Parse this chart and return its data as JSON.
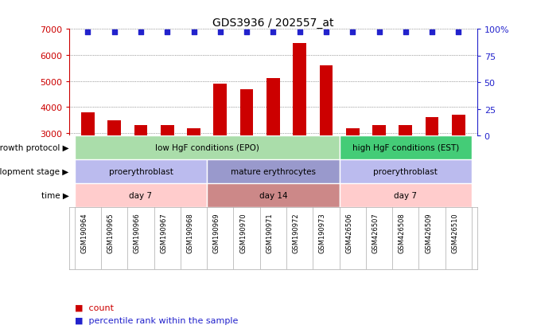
{
  "title": "GDS3936 / 202557_at",
  "samples": [
    "GSM190964",
    "GSM190965",
    "GSM190966",
    "GSM190967",
    "GSM190968",
    "GSM190969",
    "GSM190970",
    "GSM190971",
    "GSM190972",
    "GSM190973",
    "GSM426506",
    "GSM426507",
    "GSM426508",
    "GSM426509",
    "GSM426510"
  ],
  "counts": [
    3800,
    3500,
    3300,
    3300,
    3200,
    4900,
    4700,
    5100,
    6450,
    5600,
    3200,
    3300,
    3300,
    3600,
    3700
  ],
  "bar_color": "#cc0000",
  "dot_color": "#2222cc",
  "ylim_left": [
    2900,
    7000
  ],
  "ylim_right": [
    0,
    100
  ],
  "yticks_left": [
    3000,
    4000,
    5000,
    6000,
    7000
  ],
  "yticks_right": [
    0,
    25,
    50,
    75,
    100
  ],
  "grid_y": [
    3000,
    4000,
    5000,
    6000,
    7000
  ],
  "growth_protocol": {
    "segments": [
      {
        "label": "low HgF conditions (EPO)",
        "start": 0,
        "end": 9,
        "color": "#aaddaa"
      },
      {
        "label": "high HgF conditions (EST)",
        "start": 10,
        "end": 14,
        "color": "#44cc77"
      }
    ]
  },
  "development_stage": {
    "segments": [
      {
        "label": "proerythroblast",
        "start": 0,
        "end": 4,
        "color": "#bbbbee"
      },
      {
        "label": "mature erythrocytes",
        "start": 5,
        "end": 9,
        "color": "#9999cc"
      },
      {
        "label": "proerythroblast",
        "start": 10,
        "end": 14,
        "color": "#bbbbee"
      }
    ]
  },
  "time": {
    "segments": [
      {
        "label": "day 7",
        "start": 0,
        "end": 4,
        "color": "#ffcccc"
      },
      {
        "label": "day 14",
        "start": 5,
        "end": 9,
        "color": "#cc8888"
      },
      {
        "label": "day 7",
        "start": 10,
        "end": 14,
        "color": "#ffcccc"
      }
    ]
  },
  "row_labels": [
    "growth protocol",
    "development stage",
    "time"
  ],
  "legend_count_color": "#cc0000",
  "legend_dot_color": "#2222cc",
  "left_axis_color": "#cc0000",
  "right_axis_color": "#2222cc",
  "background_color": "#ffffff"
}
